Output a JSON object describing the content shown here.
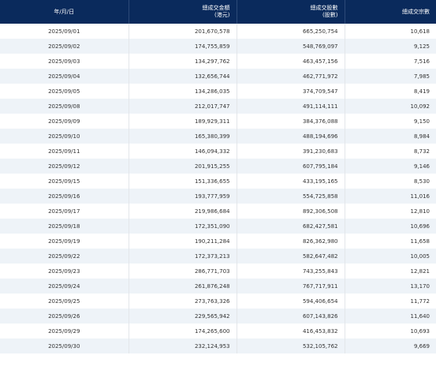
{
  "table": {
    "headers": {
      "date": "年/月/日",
      "turnover_line1": "總成交金額",
      "turnover_line2": "(港元)",
      "shares_line1": "總成交股數",
      "shares_line2": "(股數)",
      "trades": "總成交宗數"
    },
    "rows": [
      {
        "date": "2025/09/01",
        "turnover": "201,670,578",
        "shares": "665,250,754",
        "trades": "10,618"
      },
      {
        "date": "2025/09/02",
        "turnover": "174,755,859",
        "shares": "548,769,097",
        "trades": "9,125"
      },
      {
        "date": "2025/09/03",
        "turnover": "134,297,762",
        "shares": "463,457,156",
        "trades": "7,516"
      },
      {
        "date": "2025/09/04",
        "turnover": "132,656,744",
        "shares": "462,771,972",
        "trades": "7,985"
      },
      {
        "date": "2025/09/05",
        "turnover": "134,286,035",
        "shares": "374,709,547",
        "trades": "8,419"
      },
      {
        "date": "2025/09/08",
        "turnover": "212,017,747",
        "shares": "491,114,111",
        "trades": "10,092"
      },
      {
        "date": "2025/09/09",
        "turnover": "189,929,311",
        "shares": "384,376,088",
        "trades": "9,150"
      },
      {
        "date": "2025/09/10",
        "turnover": "165,380,399",
        "shares": "488,194,696",
        "trades": "8,984"
      },
      {
        "date": "2025/09/11",
        "turnover": "146,094,332",
        "shares": "391,230,683",
        "trades": "8,732"
      },
      {
        "date": "2025/09/12",
        "turnover": "201,915,255",
        "shares": "607,795,184",
        "trades": "9,146"
      },
      {
        "date": "2025/09/15",
        "turnover": "151,336,655",
        "shares": "433,195,165",
        "trades": "8,530"
      },
      {
        "date": "2025/09/16",
        "turnover": "193,777,959",
        "shares": "554,725,858",
        "trades": "11,016"
      },
      {
        "date": "2025/09/17",
        "turnover": "219,986,684",
        "shares": "892,306,508",
        "trades": "12,810"
      },
      {
        "date": "2025/09/18",
        "turnover": "172,351,090",
        "shares": "682,427,581",
        "trades": "10,696"
      },
      {
        "date": "2025/09/19",
        "turnover": "190,211,284",
        "shares": "826,362,980",
        "trades": "11,658"
      },
      {
        "date": "2025/09/22",
        "turnover": "172,373,213",
        "shares": "582,647,482",
        "trades": "10,005"
      },
      {
        "date": "2025/09/23",
        "turnover": "286,771,703",
        "shares": "743,255,843",
        "trades": "12,821"
      },
      {
        "date": "2025/09/24",
        "turnover": "261,876,248",
        "shares": "767,717,911",
        "trades": "13,170"
      },
      {
        "date": "2025/09/25",
        "turnover": "273,763,326",
        "shares": "594,406,654",
        "trades": "11,772"
      },
      {
        "date": "2025/09/26",
        "turnover": "229,565,942",
        "shares": "607,143,826",
        "trades": "11,640"
      },
      {
        "date": "2025/09/29",
        "turnover": "174,265,600",
        "shares": "416,453,832",
        "trades": "10,693"
      },
      {
        "date": "2025/09/30",
        "turnover": "232,124,953",
        "shares": "532,105,762",
        "trades": "9,669"
      }
    ]
  },
  "colors": {
    "header_bg": "#0a2a5c",
    "row_alt_bg": "#eef3f8"
  }
}
